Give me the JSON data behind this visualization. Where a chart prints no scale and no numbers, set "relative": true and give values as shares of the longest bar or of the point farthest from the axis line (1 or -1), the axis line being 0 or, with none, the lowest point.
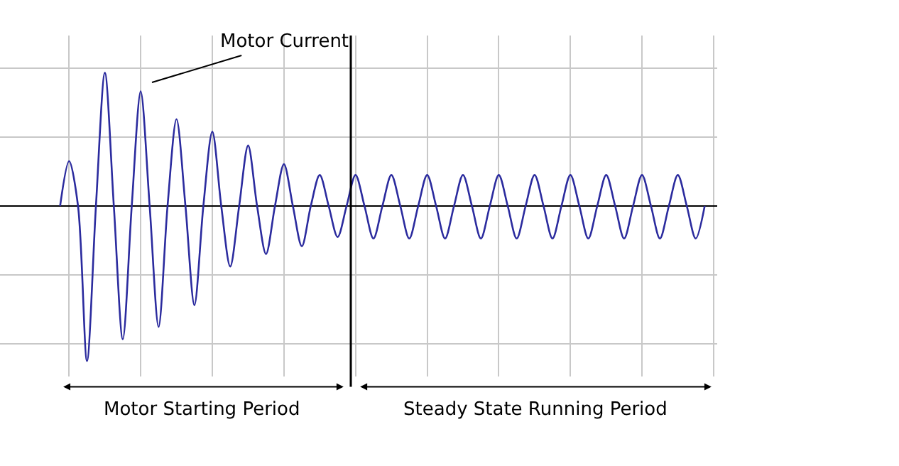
{
  "chart_data": {
    "type": "line",
    "relative": true,
    "grid": true,
    "tick_labels": false,
    "marker": "none",
    "line_style": "solid",
    "categories": [
      null,
      null,
      null,
      null,
      null,
      null,
      null,
      null,
      null,
      null,
      null,
      null,
      null,
      null,
      null,
      null,
      null,
      null,
      null,
      null,
      null,
      null,
      null,
      null,
      null,
      null,
      null,
      null,
      null,
      null,
      null,
      null,
      null,
      null,
      null,
      null,
      null,
      null,
      null,
      null,
      null,
      null,
      null,
      null,
      null,
      null,
      null,
      null,
      null,
      null,
      null,
      null,
      null,
      null,
      null,
      null,
      null,
      null,
      null,
      null,
      null,
      null,
      null,
      null,
      null,
      null,
      null,
      null,
      null,
      null,
      null,
      null,
      null
    ],
    "series": [
      {
        "color": "#2b2b9e",
        "values": [
          0,
          0.29,
          0,
          -1.0,
          0,
          0.86,
          0,
          -0.86,
          0,
          0.74,
          0,
          -0.78,
          0,
          0.56,
          0,
          -0.64,
          0,
          0.48,
          0,
          -0.39,
          0,
          0.39,
          0,
          -0.31,
          0,
          0.27,
          0,
          -0.26,
          0,
          0.2,
          0,
          -0.2,
          0,
          0.2,
          0,
          -0.21,
          0,
          0.2,
          0,
          -0.21,
          0,
          0.2,
          0,
          -0.21,
          0,
          0.2,
          0,
          -0.21,
          0,
          0.2,
          0,
          -0.21,
          0,
          0.2,
          0,
          -0.21,
          0,
          0.2,
          0,
          -0.21,
          0,
          0.2,
          0,
          -0.21,
          0,
          0.2,
          0,
          -0.21,
          0,
          0.2,
          0,
          -0.21,
          0
        ]
      }
    ],
    "annotations": [
      "Motor Current",
      "Motor Starting Period",
      "Steady State Running Period"
    ]
  }
}
